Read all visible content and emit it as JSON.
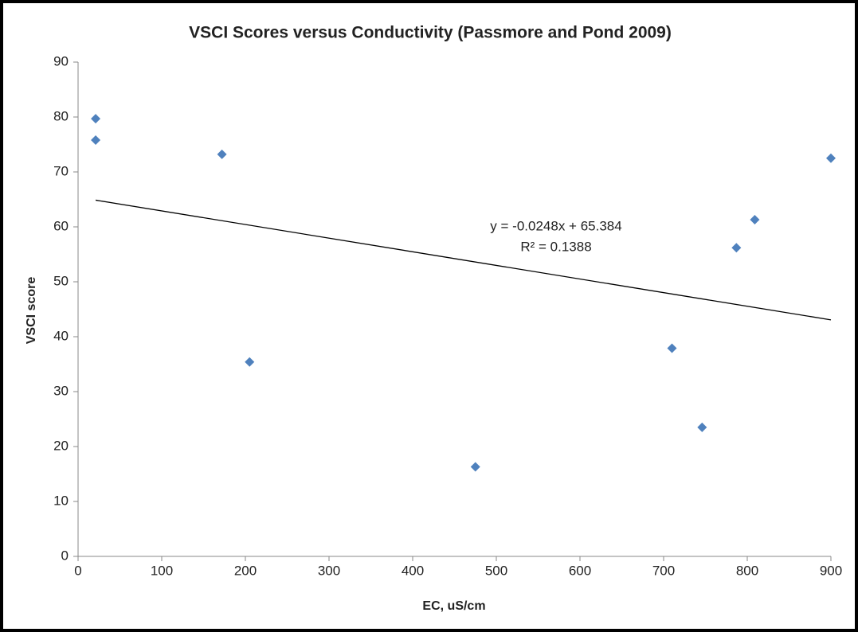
{
  "chart_data": {
    "type": "scatter",
    "title": "VSCI Scores versus Conductivity (Passmore and Pond  2009)",
    "xlabel": "EC, uS/cm",
    "ylabel": "VSCI score",
    "x": [
      21,
      21,
      172,
      205,
      475,
      710,
      746,
      787,
      809,
      900
    ],
    "series": [
      {
        "name": "VSCI score",
        "color": "#4f81bd",
        "values": [
          79.7,
          75.8,
          73.2,
          35.4,
          16.3,
          37.9,
          23.5,
          56.2,
          61.3,
          72.5
        ]
      }
    ],
    "trendline": {
      "slope": -0.0248,
      "intercept": 65.384,
      "label": "y = -0.0248x + 65.384",
      "r2_label": "R² = 0.1388"
    },
    "xlim": [
      0,
      900
    ],
    "xticks": [
      0,
      100,
      200,
      300,
      400,
      500,
      600,
      700,
      800,
      900
    ],
    "ylim": [
      0,
      90
    ],
    "yticks": [
      0,
      10,
      20,
      30,
      40,
      50,
      60,
      70,
      80,
      90
    ],
    "grid": false
  }
}
